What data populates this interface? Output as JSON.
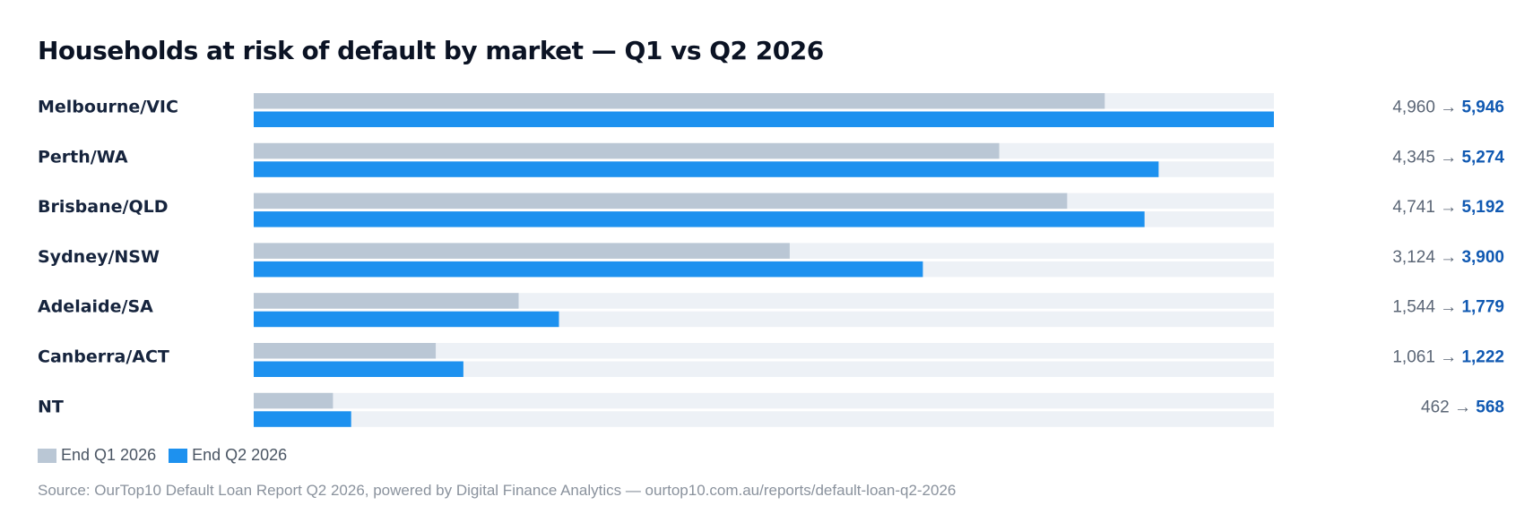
{
  "chart_data": {
    "type": "bar",
    "orientation": "horizontal",
    "title": "Households at risk of default by market — Q1 vs Q2 2026",
    "categories": [
      "Melbourne/VIC",
      "Perth/WA",
      "Brisbane/QLD",
      "Sydney/NSW",
      "Adelaide/SA",
      "Canberra/ACT",
      "NT"
    ],
    "series": [
      {
        "name": "End Q1 2026",
        "color": "#bac7d5",
        "values": [
          4960,
          4345,
          4741,
          3124,
          1544,
          1061,
          462
        ]
      },
      {
        "name": "End Q2 2026",
        "color": "#1d91ef",
        "values": [
          5946,
          5274,
          5192,
          3900,
          1779,
          1222,
          568
        ]
      }
    ],
    "value_labels": [
      {
        "q1": "4,960",
        "q2": "5,946"
      },
      {
        "q1": "4,345",
        "q2": "5,274"
      },
      {
        "q1": "4,741",
        "q2": "5,192"
      },
      {
        "q1": "3,124",
        "q2": "3,900"
      },
      {
        "q1": "1,544",
        "q2": "1,779"
      },
      {
        "q1": "1,061",
        "q2": "1,222"
      },
      {
        "q1": "462",
        "q2": "568"
      }
    ],
    "arrow": "→",
    "xlim": [
      0,
      5946
    ],
    "track_color": "#edf1f6",
    "grid": false,
    "legend_position": "bottom-left",
    "source": "Source: OurTop10 Default Loan Report Q2 2026, powered by Digital Finance Analytics — ourtop10.com.au/reports/default-loan-q2-2026"
  }
}
